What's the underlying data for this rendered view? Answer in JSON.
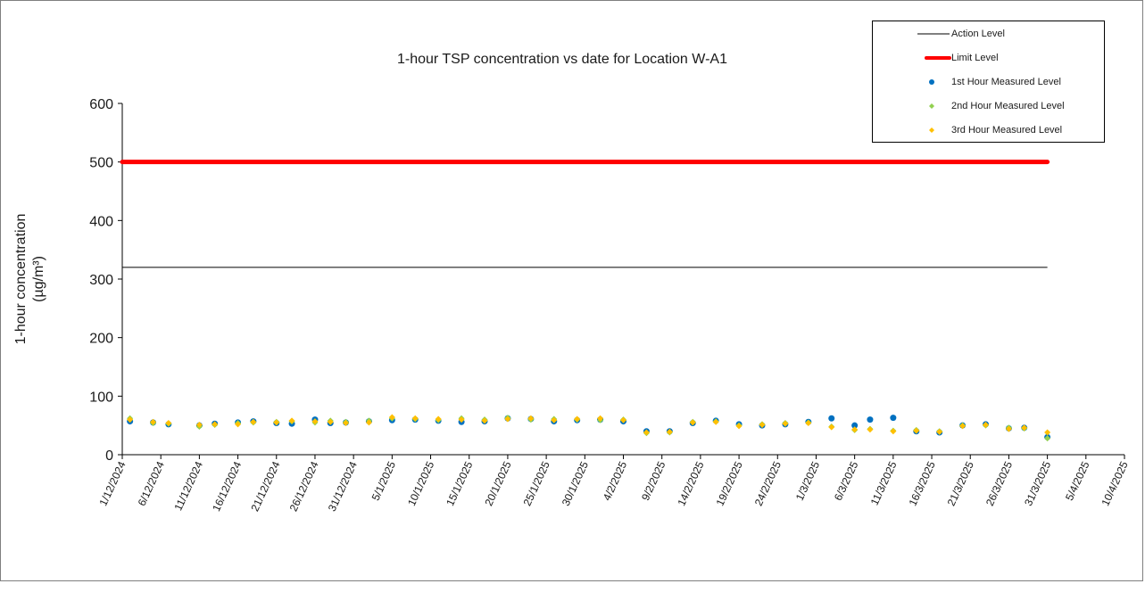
{
  "chart_data": {
    "type": "scatter",
    "title": "1-hour TSP concentration vs date for Location W-A1",
    "ylabel_line1": "1-hour concentration",
    "ylabel_line2": "(µg/m³)",
    "xlabel": "",
    "ylim": [
      0,
      600
    ],
    "yticks": [
      0,
      100,
      200,
      300,
      400,
      500,
      600
    ],
    "xlim": [
      "2024-12-01",
      "2025-04-10"
    ],
    "xtick_labels": [
      "1/12/2024",
      "6/12/2024",
      "11/12/2024",
      "16/12/2024",
      "21/12/2024",
      "26/12/2024",
      "31/12/2024",
      "5/1/2025",
      "10/1/2025",
      "15/1/2025",
      "20/1/2025",
      "25/1/2025",
      "30/1/2025",
      "4/2/2025",
      "9/2/2025",
      "14/2/2025",
      "19/2/2025",
      "24/2/2025",
      "1/3/2025",
      "6/3/2025",
      "11/3/2025",
      "16/3/2025",
      "21/3/2025",
      "26/3/2025",
      "31/3/2025",
      "5/4/2025",
      "10/4/2025"
    ],
    "xticks": [
      "2024-12-01",
      "2024-12-06",
      "2024-12-11",
      "2024-12-16",
      "2024-12-21",
      "2024-12-26",
      "2024-12-31",
      "2025-01-05",
      "2025-01-10",
      "2025-01-15",
      "2025-01-20",
      "2025-01-25",
      "2025-01-30",
      "2025-02-04",
      "2025-02-09",
      "2025-02-14",
      "2025-02-19",
      "2025-02-24",
      "2025-03-01",
      "2025-03-06",
      "2025-03-11",
      "2025-03-16",
      "2025-03-21",
      "2025-03-26",
      "2025-03-31",
      "2025-04-05",
      "2025-04-10"
    ],
    "grid": false,
    "legend_position": "top-right",
    "series": [
      {
        "name": "Action Level",
        "kind": "line",
        "color": "#000000",
        "x": [
          "2024-12-01",
          "2025-03-31"
        ],
        "y": [
          320,
          320
        ]
      },
      {
        "name": "Limit Level",
        "kind": "line",
        "color": "#ff0000",
        "x": [
          "2024-12-01",
          "2025-03-31"
        ],
        "y": [
          500,
          500
        ]
      },
      {
        "name": "1st Hour Measured Level",
        "kind": "points",
        "color": "#0070c0",
        "marker": "circle",
        "x": [
          "2024-12-02",
          "2024-12-05",
          "2024-12-07",
          "2024-12-11",
          "2024-12-13",
          "2024-12-16",
          "2024-12-18",
          "2024-12-21",
          "2024-12-23",
          "2024-12-26",
          "2024-12-28",
          "2024-12-30",
          "2025-01-02",
          "2025-01-05",
          "2025-01-08",
          "2025-01-11",
          "2025-01-14",
          "2025-01-17",
          "2025-01-20",
          "2025-01-23",
          "2025-01-26",
          "2025-01-29",
          "2025-02-01",
          "2025-02-04",
          "2025-02-07",
          "2025-02-10",
          "2025-02-13",
          "2025-02-16",
          "2025-02-19",
          "2025-02-22",
          "2025-02-25",
          "2025-02-28",
          "2025-03-03",
          "2025-03-06",
          "2025-03-08",
          "2025-03-11",
          "2025-03-14",
          "2025-03-17",
          "2025-03-20",
          "2025-03-23",
          "2025-03-26",
          "2025-03-28",
          "2025-03-31"
        ],
        "y": [
          57,
          55,
          52,
          50,
          53,
          55,
          57,
          54,
          53,
          60,
          54,
          55,
          57,
          59,
          60,
          58,
          56,
          57,
          62,
          61,
          57,
          59,
          60,
          57,
          40,
          40,
          54,
          58,
          52,
          50,
          52,
          56,
          62,
          50,
          60,
          63,
          40,
          38,
          50,
          52,
          45,
          46,
          30
        ]
      },
      {
        "name": "2nd Hour Measured Level",
        "kind": "points",
        "color": "#92d050",
        "marker": "diamond",
        "x": [
          "2024-12-02",
          "2024-12-05",
          "2024-12-07",
          "2024-12-11",
          "2024-12-13",
          "2024-12-16",
          "2024-12-18",
          "2024-12-21",
          "2024-12-23",
          "2024-12-26",
          "2024-12-28",
          "2024-12-30",
          "2025-01-02",
          "2025-01-05",
          "2025-01-08",
          "2025-01-11",
          "2025-01-14",
          "2025-01-17",
          "2025-01-20",
          "2025-01-23",
          "2025-01-26",
          "2025-01-29",
          "2025-02-01",
          "2025-02-04",
          "2025-02-07",
          "2025-02-10",
          "2025-02-13",
          "2025-02-16",
          "2025-02-19",
          "2025-02-22",
          "2025-02-25",
          "2025-02-28",
          "2025-03-03",
          "2025-03-06",
          "2025-03-08",
          "2025-03-11",
          "2025-03-14",
          "2025-03-17",
          "2025-03-20",
          "2025-03-23",
          "2025-03-26",
          "2025-03-28",
          "2025-03-31"
        ],
        "y": [
          62,
          54,
          53,
          48,
          51,
          54,
          55,
          56,
          57,
          55,
          58,
          56,
          58,
          62,
          61,
          59,
          62,
          60,
          63,
          60,
          61,
          60,
          59,
          60,
          37,
          38,
          56,
          57,
          50,
          52,
          54,
          55,
          48,
          42,
          44,
          41,
          42,
          40,
          50,
          50,
          46,
          45,
          28
        ]
      },
      {
        "name": "3rd Hour Measured Level",
        "kind": "points",
        "color": "#ffc000",
        "marker": "diamond",
        "x": [
          "2024-12-02",
          "2024-12-05",
          "2024-12-07",
          "2024-12-11",
          "2024-12-13",
          "2024-12-16",
          "2024-12-18",
          "2024-12-21",
          "2024-12-23",
          "2024-12-26",
          "2024-12-28",
          "2024-12-30",
          "2025-01-02",
          "2025-01-05",
          "2025-01-08",
          "2025-01-11",
          "2025-01-14",
          "2025-01-17",
          "2025-01-20",
          "2025-01-23",
          "2025-01-26",
          "2025-01-29",
          "2025-02-01",
          "2025-02-04",
          "2025-02-07",
          "2025-02-10",
          "2025-02-13",
          "2025-02-16",
          "2025-02-19",
          "2025-02-22",
          "2025-02-25",
          "2025-02-28",
          "2025-03-03",
          "2025-03-06",
          "2025-03-08",
          "2025-03-11",
          "2025-03-14",
          "2025-03-17",
          "2025-03-20",
          "2025-03-23",
          "2025-03-26",
          "2025-03-28",
          "2025-03-31"
        ],
        "y": [
          60,
          56,
          54,
          51,
          52,
          52,
          56,
          55,
          58,
          57,
          56,
          54,
          55,
          64,
          62,
          61,
          60,
          58,
          61,
          62,
          59,
          61,
          62,
          59,
          38,
          39,
          55,
          56,
          49,
          51,
          53,
          54,
          47,
          43,
          43,
          40,
          41,
          39,
          49,
          51,
          44,
          46,
          38
        ]
      }
    ]
  }
}
